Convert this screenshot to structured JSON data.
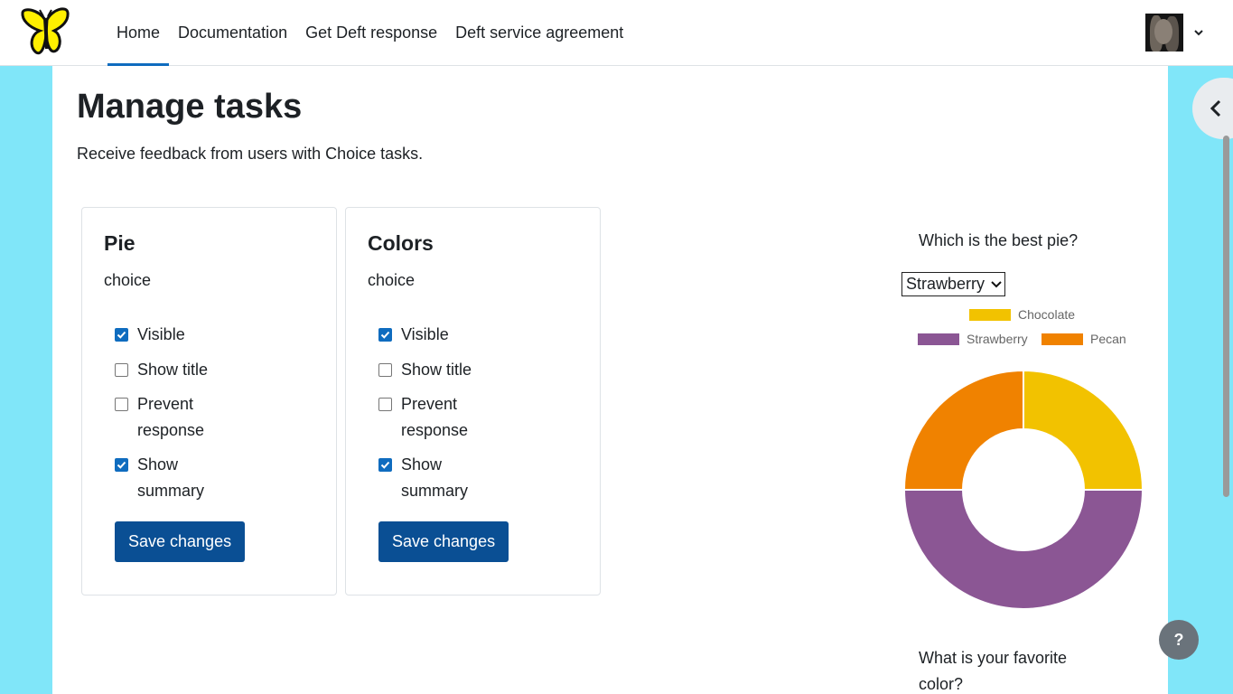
{
  "nav": {
    "links": [
      "Home",
      "Documentation",
      "Get Deft response",
      "Deft service agreement"
    ],
    "active": "Home"
  },
  "page": {
    "title": "Manage tasks",
    "intro": "Receive feedback from users with Choice tasks."
  },
  "cards": [
    {
      "title": "Pie",
      "type": "choice",
      "options": [
        {
          "label": "Visible",
          "checked": true
        },
        {
          "label": "Show title",
          "checked": false
        },
        {
          "label": "Prevent response",
          "checked": false
        },
        {
          "label": "Show summary",
          "checked": true
        }
      ],
      "save_label": "Save changes"
    },
    {
      "title": "Colors",
      "type": "choice",
      "options": [
        {
          "label": "Visible",
          "checked": true
        },
        {
          "label": "Show title",
          "checked": false
        },
        {
          "label": "Prevent response",
          "checked": false
        },
        {
          "label": "Show summary",
          "checked": true
        }
      ],
      "save_label": "Save changes"
    }
  ],
  "summary": {
    "question": "Which is the best pie?",
    "select_value": "Strawberry",
    "next_question": "What is your favorite color?"
  },
  "chart_data": {
    "type": "pie",
    "categories": [
      "Chocolate",
      "Strawberry",
      "Pecan"
    ],
    "values": [
      1,
      2,
      1
    ],
    "colors": [
      "#f2c200",
      "#8b5694",
      "#f08200"
    ],
    "legend_position": "top"
  },
  "colors": {
    "accent": "#0f6cbf",
    "button": "#0a4f94",
    "background": "#80e6f9"
  },
  "icons": {
    "logo": "butterfly-logo-icon",
    "drawer": "chevron-left-icon",
    "help": "?"
  }
}
